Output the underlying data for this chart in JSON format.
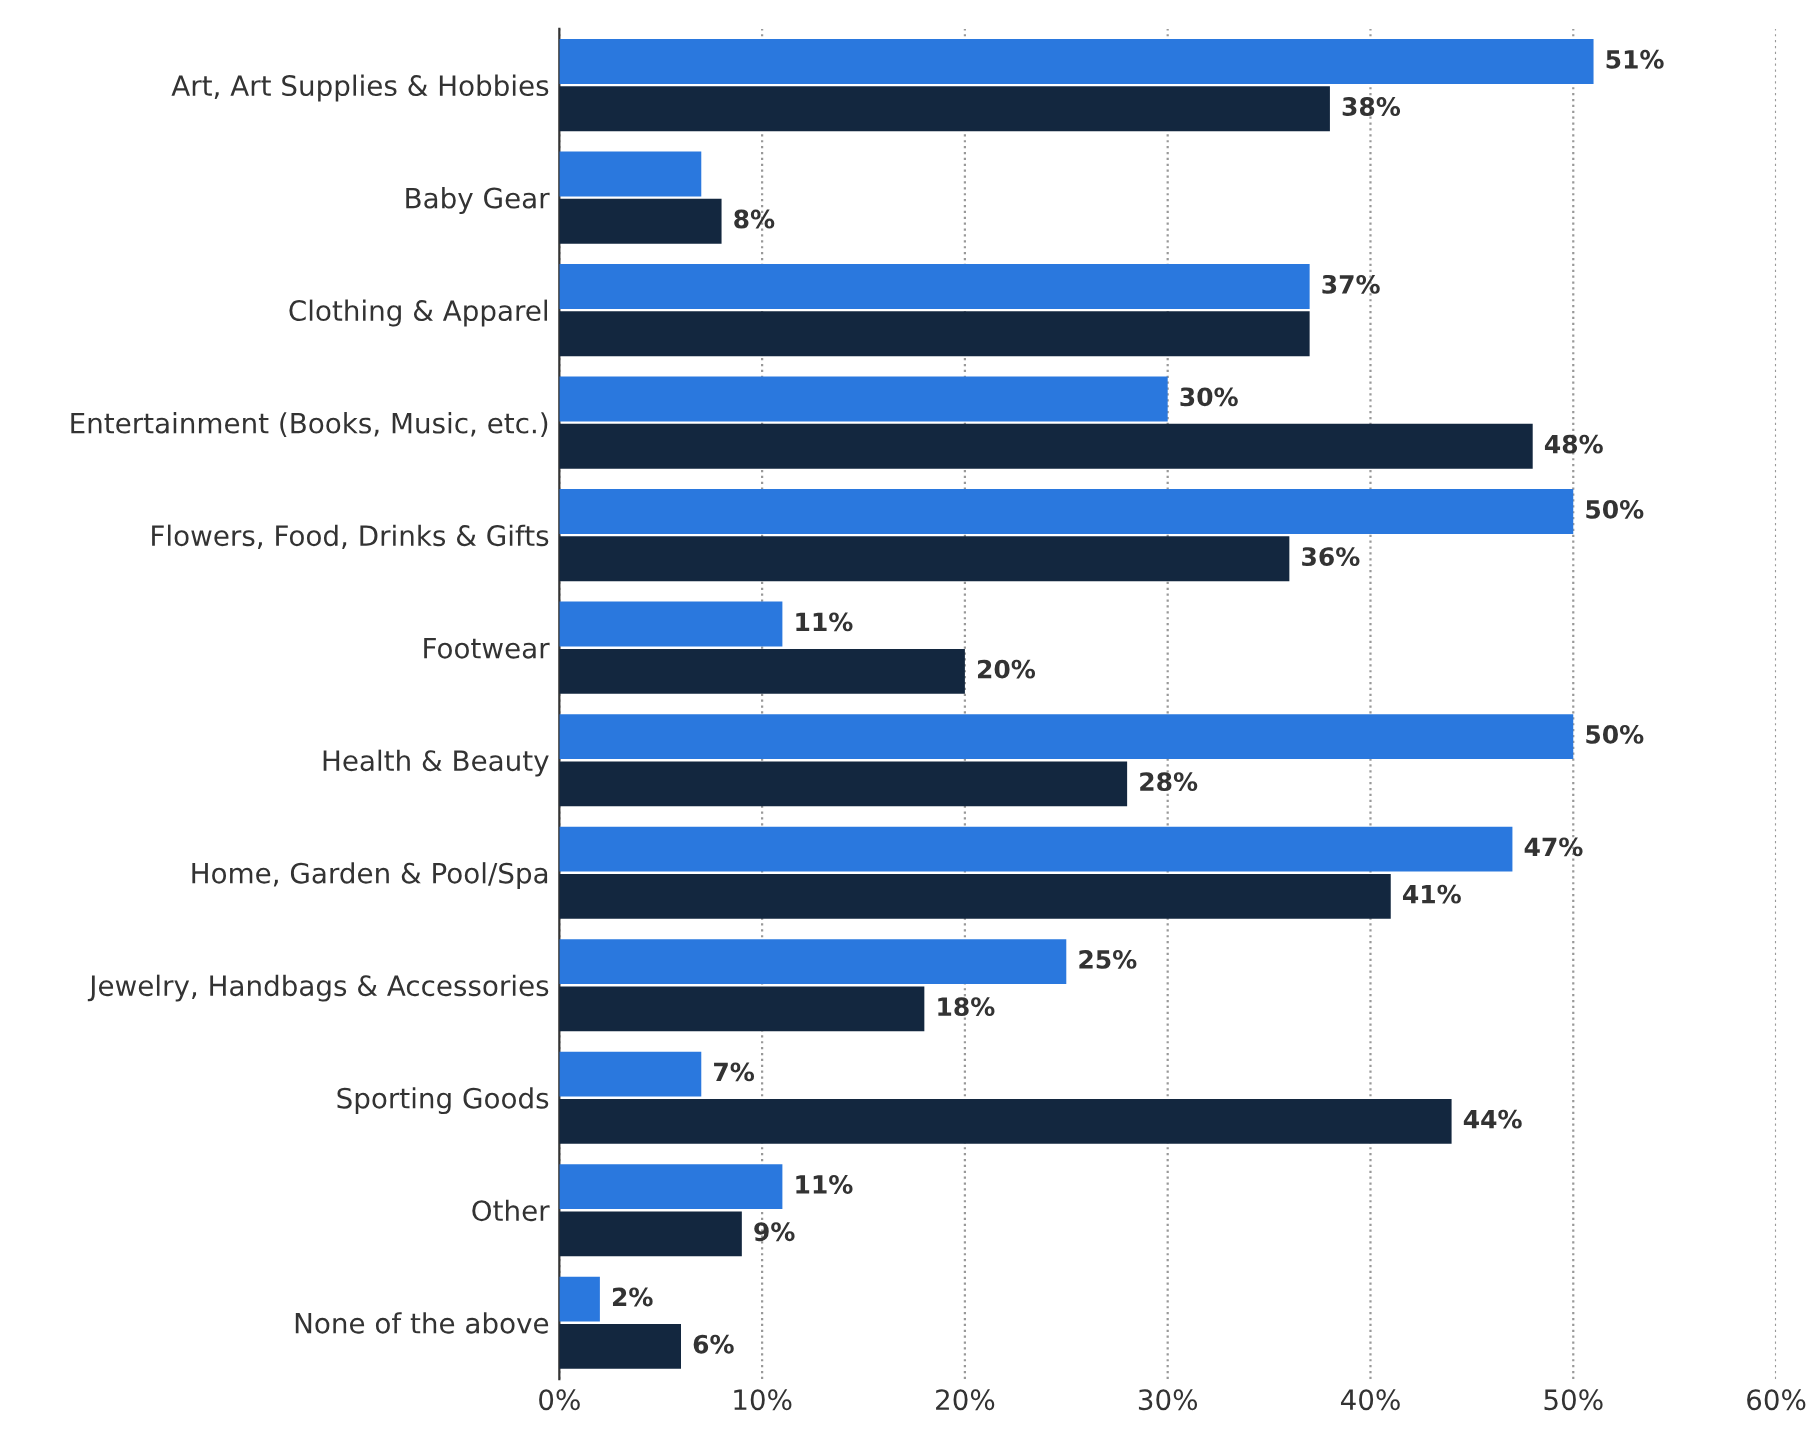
{
  "chart_data": {
    "type": "bar",
    "orientation": "horizontal",
    "categories": [
      "Art, Art Supplies & Hobbies",
      "Baby Gear",
      "Clothing & Apparel",
      "Entertainment (Books, Music, etc.)",
      "Flowers, Food, Drinks & Gifts",
      "Footwear",
      "Health & Beauty",
      "Home, Garden & Pool/Spa",
      "Jewelry, Handbags & Accessories",
      "Sporting Goods",
      "Other",
      "None of the above"
    ],
    "series": [
      {
        "color": "#2a78de",
        "values": [
          51,
          7,
          37,
          30,
          50,
          11,
          50,
          47,
          25,
          7,
          11,
          2
        ],
        "value_labels": [
          "51%",
          null,
          "37%",
          "30%",
          "50%",
          "11%",
          "50%",
          "47%",
          "25%",
          "7%",
          "11%",
          "2%"
        ]
      },
      {
        "color": "#13273f",
        "values": [
          38,
          8,
          37,
          48,
          36,
          20,
          28,
          41,
          18,
          44,
          9,
          6
        ],
        "value_labels": [
          "38%",
          "8%",
          null,
          "48%",
          "36%",
          "20%",
          "28%",
          "41%",
          "18%",
          "44%",
          "9%",
          "6%"
        ]
      }
    ],
    "xlim": [
      0,
      60
    ],
    "xticks": [
      {
        "value": 0,
        "label": "0%"
      },
      {
        "value": 10,
        "label": "10%"
      },
      {
        "value": 20,
        "label": "20%"
      },
      {
        "value": 30,
        "label": "30%"
      },
      {
        "value": 40,
        "label": "40%"
      },
      {
        "value": 50,
        "label": "50%"
      },
      {
        "value": 60,
        "label": "60%"
      }
    ],
    "grid": "x",
    "legend": false
  }
}
